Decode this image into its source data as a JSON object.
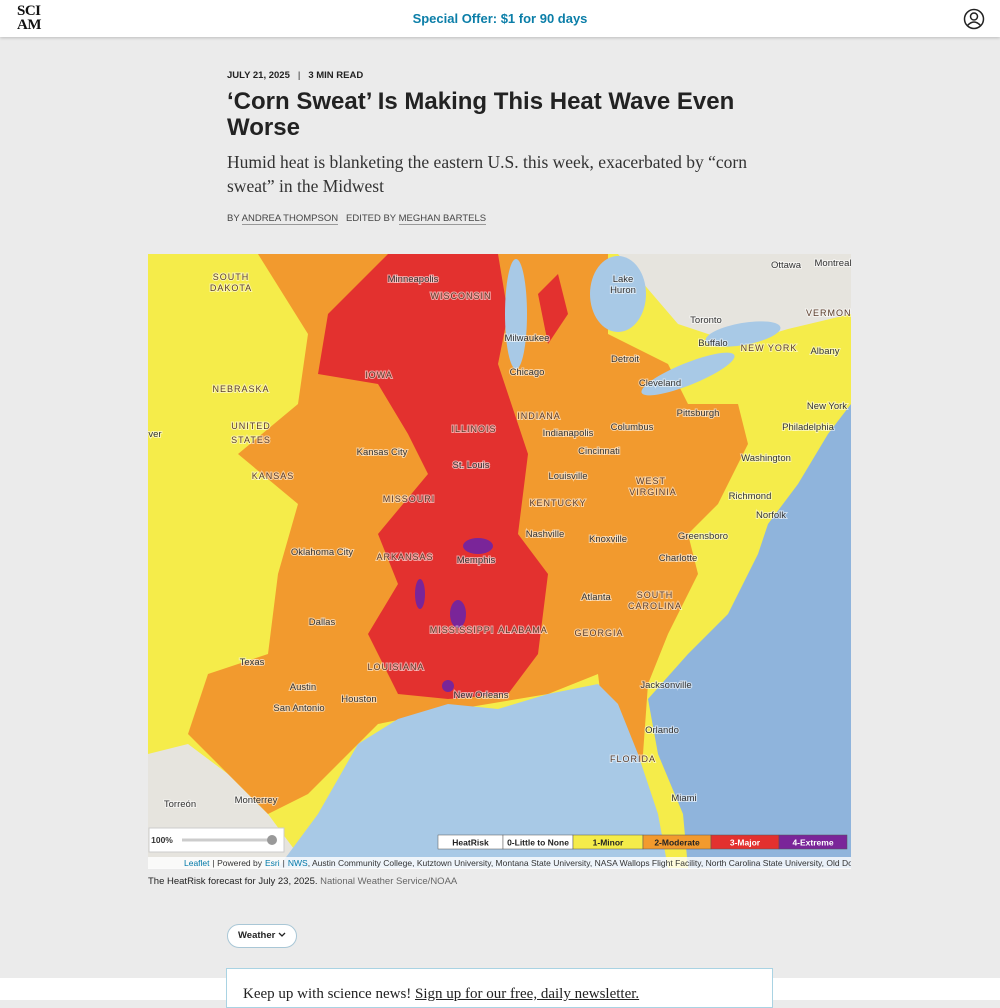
{
  "header": {
    "logo": [
      "SCI",
      "AM"
    ],
    "offer": "Special Offer: $1 for 90 days"
  },
  "article": {
    "date": "JULY 21, 2025",
    "read_time": "3 MIN READ",
    "title": "‘Corn Sweat’ Is Making This Heat Wave Even Worse",
    "subtitle": "Humid heat is blanketing the eastern U.S. this week, exacerbated by “corn sweat” in the Midwest",
    "byline": {
      "by": "BY",
      "author": "ANDREA THOMPSON",
      "edited": "EDITED BY",
      "editor": "MEGHAN BARTELS"
    }
  },
  "map": {
    "labels": [
      "SOUTH",
      "DAKOTA",
      "Minneapolis",
      "WISCONSIN",
      "Lake",
      "Huron",
      "Ottawa",
      "Montreal",
      "Toronto",
      "VERMONT",
      "Buffalo",
      "Milwaukee",
      "NEW YORK",
      "Albany",
      "Detroit",
      "IOWA",
      "Chicago",
      "NEBRASKA",
      "Cleveland",
      "New York",
      "Pittsburgh",
      "INDIANA",
      "UNITED",
      "STATES",
      "ILLINOIS",
      "Columbus",
      "Philadelphia",
      "Indianapolis",
      "ver",
      "Kansas City",
      "Cincinnati",
      "Washington",
      "St. Louis",
      "KANSAS",
      "Louisville",
      "WEST",
      "VIRGINIA",
      "Richmond",
      "MISSOURI",
      "KENTUCKY",
      "Norfolk",
      "Nashville",
      "Greensboro",
      "Knoxville",
      "Oklahoma City",
      "ARKANSAS",
      "Memphis",
      "Charlotte",
      "Atlanta",
      "SOUTH",
      "CAROLINA",
      "Dallas",
      "MISSISSIPPI",
      "ALABAMA",
      "GEORGIA",
      "Texas",
      "LOUISIANA",
      "Jacksonville",
      "Austin",
      "Houston",
      "New Orleans",
      "San Antonio",
      "Orlando",
      "FLORIDA",
      "Torreón",
      "Monterrey",
      "Miami"
    ],
    "legend": [
      {
        "label": "HeatRisk",
        "color": "#ffffff"
      },
      {
        "label": "0-Little to None",
        "color": "#ffffff"
      },
      {
        "label": "1-Minor",
        "color": "#f5ec4a"
      },
      {
        "label": "2-Moderate",
        "color": "#f29a2e"
      },
      {
        "label": "3-Major",
        "color": "#e3312f"
      },
      {
        "label": "4-Extreme",
        "color": "#7a2599"
      }
    ],
    "zoom": "100%",
    "attribution": [
      "Leaflet",
      "| Powered by",
      "Esri",
      "|",
      "NWS",
      ", Austin Community College, Kutztown University, Montana State University, NASA Wallops Flight Facility, North Carolina State University, Old Domini…"
    ]
  },
  "caption": {
    "text": "The HeatRisk forecast for July 23, 2025.",
    "credit": "National Weather Service/NOAA"
  },
  "tag": "Weather",
  "newsletter": {
    "text": "Keep up with science news!",
    "link": "Sign up for our free, daily newsletter."
  }
}
